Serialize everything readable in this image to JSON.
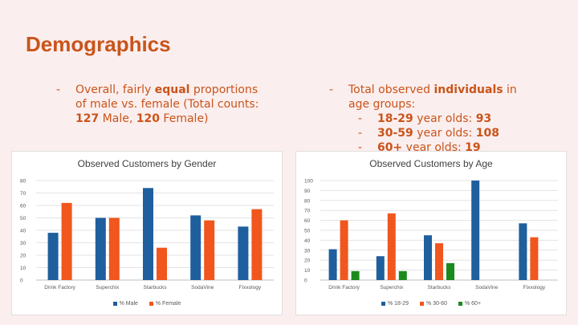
{
  "slide": {
    "title": "Demographics"
  },
  "left_bullet": {
    "dash": "-",
    "pre": "Overall, fairly ",
    "bold": "equal",
    "post": " proportions of male vs. female (Total counts: ",
    "male_count": "127",
    "male_word": " Male, ",
    "female_count": "120",
    "female_word": " Female)"
  },
  "right_bullet": {
    "dash": "-",
    "pre": "Total observed ",
    "bold": "individuals",
    "post": " in age groups:",
    "items": [
      {
        "dash": "-",
        "label": "18-29",
        "mid": " year olds: ",
        "value": "93"
      },
      {
        "dash": "-",
        "label": "30-59",
        "mid": " year olds: ",
        "value": "108"
      },
      {
        "dash": "-",
        "label": "60+",
        "mid": " year olds: ",
        "value": "19"
      }
    ]
  },
  "chart_data": [
    {
      "type": "bar",
      "title": "Observed Customers by Gender",
      "categories": [
        "Drink Factory",
        "Superchix",
        "Starbucks",
        "SodaVine",
        "Fixxology"
      ],
      "ylim": [
        0,
        80
      ],
      "yticks": [
        0,
        10,
        20,
        30,
        40,
        50,
        60,
        70,
        80
      ],
      "grid": true,
      "legend_position": "bottom",
      "series": [
        {
          "name": "% Male",
          "color": "#1f5f9e",
          "values": [
            38,
            50,
            74,
            52,
            43
          ]
        },
        {
          "name": "% Female",
          "color": "#f0561d",
          "values": [
            62,
            50,
            26,
            48,
            57
          ]
        }
      ]
    },
    {
      "type": "bar",
      "title": "Observed Customers by Age",
      "categories": [
        "Drink Factory",
        "Superchix",
        "Starbucks",
        "SodaVine",
        "Fixxology"
      ],
      "ylim": [
        0,
        100
      ],
      "yticks": [
        0,
        10,
        20,
        30,
        40,
        50,
        60,
        70,
        80,
        90,
        100
      ],
      "grid": true,
      "legend_position": "bottom",
      "series": [
        {
          "name": "% 18-29",
          "color": "#1f5f9e",
          "values": [
            31,
            24,
            45,
            100,
            57
          ]
        },
        {
          "name": "% 30-60",
          "color": "#f0561d",
          "values": [
            60,
            67,
            37,
            0,
            43
          ]
        },
        {
          "name": "% 60+",
          "color": "#1d8a1d",
          "values": [
            9,
            9,
            17,
            0,
            0
          ]
        }
      ]
    }
  ]
}
